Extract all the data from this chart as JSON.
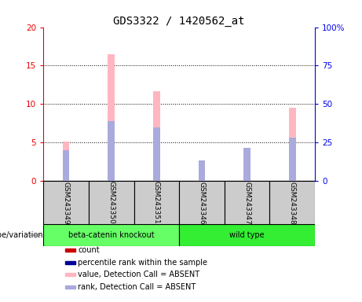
{
  "title": "GDS3322 / 1420562_at",
  "samples": [
    "GSM243349",
    "GSM243350",
    "GSM243351",
    "GSM243346",
    "GSM243347",
    "GSM243348"
  ],
  "groups": [
    "beta-catenin knockout",
    "beta-catenin knockout",
    "beta-catenin knockout",
    "wild type",
    "wild type",
    "wild type"
  ],
  "group_colors": {
    "beta-catenin knockout": "#66FF66",
    "wild type": "#33EE33"
  },
  "pink_bar_heights": [
    5.1,
    16.5,
    11.7,
    2.7,
    4.3,
    9.5
  ],
  "blue_bar_heights_pct": [
    20.0,
    39.0,
    35.0,
    13.5,
    21.5,
    28.5
  ],
  "ylim_left": [
    0,
    20
  ],
  "ylim_right": [
    0,
    100
  ],
  "yticks_left": [
    0,
    5,
    10,
    15,
    20
  ],
  "yticks_right": [
    0,
    25,
    50,
    75,
    100
  ],
  "ytick_labels_left": [
    "0",
    "5",
    "10",
    "15",
    "20"
  ],
  "ytick_labels_right": [
    "0",
    "25",
    "50",
    "75",
    "100%"
  ],
  "left_tick_color": "#EE0000",
  "right_tick_color": "#0000EE",
  "bar_width": 0.15,
  "pink_color": "#FFB6C1",
  "blue_color": "#AAAADD",
  "red_color": "#CC0000",
  "dark_blue_color": "#0000CC",
  "group_label": "genotype/variation",
  "legend_items": [
    {
      "label": "count",
      "color": "#CC0000"
    },
    {
      "label": "percentile rank within the sample",
      "color": "#000099"
    },
    {
      "label": "value, Detection Call = ABSENT",
      "color": "#FFB6C1"
    },
    {
      "label": "rank, Detection Call = ABSENT",
      "color": "#AAAADD"
    }
  ],
  "bg_color": "#FFFFFF",
  "plot_bg_color": "#FFFFFF",
  "sample_box_color": "#CCCCCC",
  "hgrid_ticks": [
    5,
    10,
    15
  ]
}
